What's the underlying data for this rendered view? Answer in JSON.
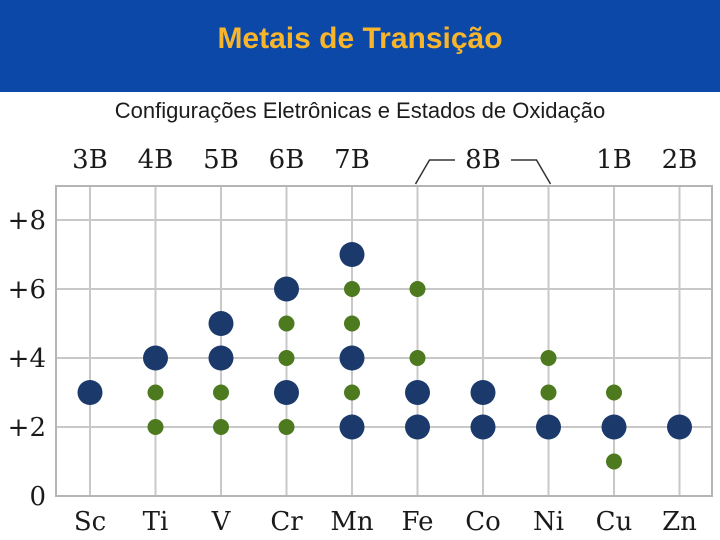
{
  "header": {
    "title": "Metais de Transição"
  },
  "subtitle": "Configurações Eletrônicas e Estados de Oxidação",
  "colors": {
    "header_bg": "#0b48a8",
    "title": "#f7b52c",
    "major": "#1b3a6b",
    "minor": "#4d7a1f",
    "grid": "#c8c8c8"
  },
  "chart_data": {
    "type": "scatter",
    "categories": [
      "Sc",
      "Ti",
      "V",
      "Cr",
      "Mn",
      "Fe",
      "Co",
      "Ni",
      "Cu",
      "Zn"
    ],
    "groups": [
      "3B",
      "4B",
      "5B",
      "6B",
      "7B",
      "8B",
      "1B",
      "2B"
    ],
    "group_columns": [
      [
        0
      ],
      [
        1
      ],
      [
        2
      ],
      [
        3
      ],
      [
        4
      ],
      [
        5,
        6,
        7
      ],
      [
        8
      ],
      [
        9
      ]
    ],
    "ylim": [
      0,
      9
    ],
    "yticks": [
      "0",
      "+2",
      "+4",
      "+6",
      "+8"
    ],
    "ytick_values": [
      0,
      2,
      4,
      6,
      8
    ],
    "grid": true,
    "series": [
      {
        "kind": "major",
        "points": [
          {
            "x": "Sc",
            "y": 3
          },
          {
            "x": "Ti",
            "y": 4
          },
          {
            "x": "V",
            "y": 4
          },
          {
            "x": "V",
            "y": 5
          },
          {
            "x": "Cr",
            "y": 3
          },
          {
            "x": "Cr",
            "y": 6
          },
          {
            "x": "Mn",
            "y": 2
          },
          {
            "x": "Mn",
            "y": 4
          },
          {
            "x": "Mn",
            "y": 7
          },
          {
            "x": "Fe",
            "y": 2
          },
          {
            "x": "Fe",
            "y": 3
          },
          {
            "x": "Co",
            "y": 2
          },
          {
            "x": "Co",
            "y": 3
          },
          {
            "x": "Ni",
            "y": 2
          },
          {
            "x": "Cu",
            "y": 2
          },
          {
            "x": "Zn",
            "y": 2
          }
        ]
      },
      {
        "kind": "minor",
        "points": [
          {
            "x": "Ti",
            "y": 2
          },
          {
            "x": "Ti",
            "y": 3
          },
          {
            "x": "V",
            "y": 2
          },
          {
            "x": "V",
            "y": 3
          },
          {
            "x": "Cr",
            "y": 2
          },
          {
            "x": "Cr",
            "y": 4
          },
          {
            "x": "Cr",
            "y": 5
          },
          {
            "x": "Mn",
            "y": 3
          },
          {
            "x": "Mn",
            "y": 5
          },
          {
            "x": "Mn",
            "y": 6
          },
          {
            "x": "Fe",
            "y": 4
          },
          {
            "x": "Fe",
            "y": 6
          },
          {
            "x": "Ni",
            "y": 3
          },
          {
            "x": "Ni",
            "y": 4
          },
          {
            "x": "Cu",
            "y": 1
          },
          {
            "x": "Cu",
            "y": 3
          }
        ]
      }
    ]
  }
}
